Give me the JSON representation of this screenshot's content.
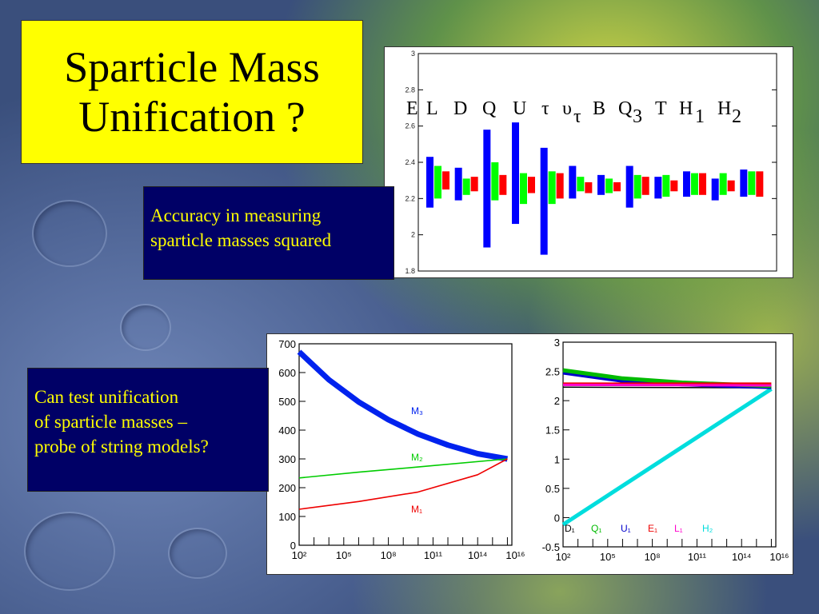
{
  "slide": {
    "title_line1": "Sparticle Mass",
    "title_line2": "Unification ?",
    "box1_line1": "Accuracy in measuring",
    "box1_line2": "sparticle masses squared",
    "box2_line1": "Can test unification",
    "box2_line2": "of sparticle masses –",
    "box2_line3": "probe of string models?"
  },
  "colors": {
    "title_bg": "#ffff00",
    "box_bg": "#000066",
    "box_text": "#ffff00"
  },
  "chart_data": [
    {
      "type": "bar",
      "ylim": [
        1.8,
        3.0
      ],
      "yticks": [
        "1.8",
        "2",
        "2.2",
        "2.4",
        "2.6",
        "2.8",
        "3"
      ],
      "header_labels": [
        "E",
        "L",
        "D",
        "Q",
        "U",
        "τ",
        "υ",
        "τ",
        "B",
        "Q",
        "3",
        "T",
        "H",
        "1",
        "H",
        "2"
      ],
      "categories": [
        "E",
        "L",
        "D",
        "Q",
        "U",
        "τ",
        "υτ",
        "B",
        "Q3",
        "T",
        "H1",
        "H2"
      ],
      "series": [
        {
          "color": "#0000ff",
          "ranges": [
            [
              2.15,
              2.43
            ],
            [
              2.19,
              2.37
            ],
            [
              1.93,
              2.58
            ],
            [
              2.06,
              2.62
            ],
            [
              1.89,
              2.48
            ],
            [
              2.2,
              2.38
            ],
            [
              2.22,
              2.33
            ],
            [
              2.15,
              2.38
            ],
            [
              2.2,
              2.32
            ],
            [
              2.21,
              2.35
            ],
            [
              2.19,
              2.31
            ],
            [
              2.21,
              2.36
            ]
          ]
        },
        {
          "color": "#00ff00",
          "ranges": [
            [
              2.2,
              2.38
            ],
            [
              2.22,
              2.31
            ],
            [
              2.19,
              2.4
            ],
            [
              2.17,
              2.34
            ],
            [
              2.17,
              2.35
            ],
            [
              2.24,
              2.32
            ],
            [
              2.23,
              2.31
            ],
            [
              2.2,
              2.33
            ],
            [
              2.21,
              2.33
            ],
            [
              2.22,
              2.34
            ],
            [
              2.22,
              2.34
            ],
            [
              2.22,
              2.35
            ]
          ]
        },
        {
          "color": "#ff0000",
          "ranges": [
            [
              2.25,
              2.35
            ],
            [
              2.24,
              2.32
            ],
            [
              2.22,
              2.33
            ],
            [
              2.23,
              2.32
            ],
            [
              2.2,
              2.34
            ],
            [
              2.23,
              2.29
            ],
            [
              2.24,
              2.29
            ],
            [
              2.22,
              2.32
            ],
            [
              2.24,
              2.3
            ],
            [
              2.22,
              2.34
            ],
            [
              2.24,
              2.3
            ],
            [
              2.21,
              2.35
            ]
          ]
        }
      ]
    },
    {
      "type": "line",
      "xscale": "log",
      "xticks": [
        "10²",
        "10⁵",
        "10⁸",
        "10¹¹",
        "10¹⁴",
        "10¹⁶"
      ],
      "ylim": [
        0,
        700
      ],
      "yticks": [
        "0",
        "100",
        "200",
        "300",
        "400",
        "500",
        "600",
        "700"
      ],
      "series": [
        {
          "name": "M₃",
          "color": "#0022ee",
          "x": [
            2,
            4,
            6,
            8,
            10,
            12,
            14,
            16
          ],
          "y": [
            672,
            575,
            498,
            436,
            386,
            348,
            318,
            300
          ]
        },
        {
          "name": "M₂",
          "color": "#00cc00",
          "x": [
            2,
            6,
            10,
            16
          ],
          "y": [
            234,
            254,
            272,
            300
          ]
        },
        {
          "name": "M₁",
          "color": "#ee0000",
          "x": [
            2,
            6,
            10,
            14,
            16
          ],
          "y": [
            125,
            152,
            185,
            245,
            300
          ]
        }
      ]
    },
    {
      "type": "line",
      "xscale": "log",
      "xticks": [
        "10²",
        "10⁵",
        "10⁸",
        "10¹¹",
        "10¹⁴",
        "10¹⁶"
      ],
      "ylim": [
        -0.5,
        3
      ],
      "yticks": [
        "-0.5",
        "0",
        "0.5",
        "1",
        "1.5",
        "2",
        "2.5",
        "3"
      ],
      "series": [
        {
          "name": "D₁",
          "color": "#000000",
          "x": [
            2,
            16
          ],
          "y": [
            2.23,
            2.22
          ]
        },
        {
          "name": "Q₁",
          "color": "#00bb00",
          "x": [
            2,
            6,
            10,
            16
          ],
          "y": [
            2.52,
            2.38,
            2.31,
            2.25
          ]
        },
        {
          "name": "U₁",
          "color": "#0000cc",
          "x": [
            2,
            6,
            10,
            16
          ],
          "y": [
            2.48,
            2.34,
            2.28,
            2.23
          ]
        },
        {
          "name": "E₁",
          "color": "#ee0000",
          "x": [
            2,
            16
          ],
          "y": [
            2.29,
            2.29
          ]
        },
        {
          "name": "L₁",
          "color": "#ff00cc",
          "x": [
            2,
            16
          ],
          "y": [
            2.27,
            2.26
          ]
        },
        {
          "name": "H₂",
          "color": "#00dddd",
          "x": [
            2,
            16
          ],
          "y": [
            -0.12,
            2.2
          ]
        }
      ]
    }
  ]
}
